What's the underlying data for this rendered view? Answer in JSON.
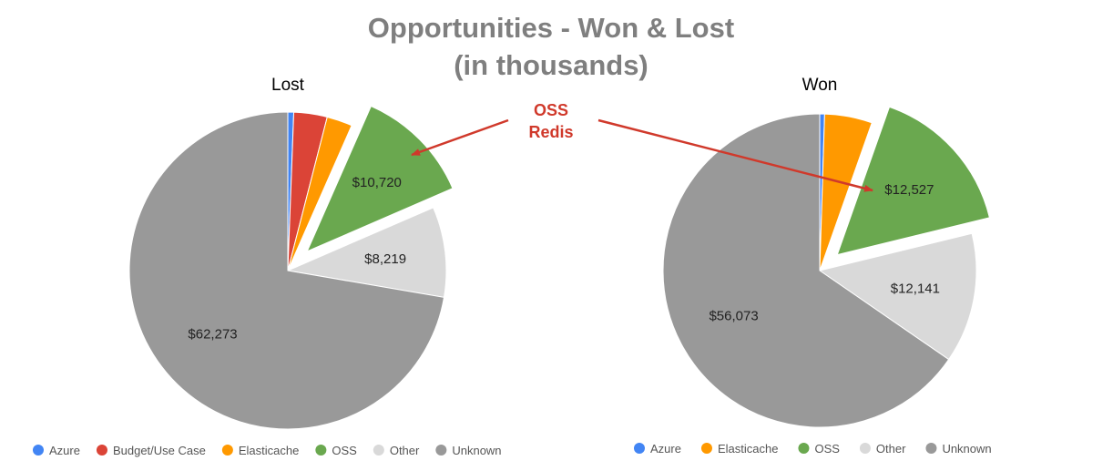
{
  "title_line1": "Opportunities - Won & Lost",
  "title_line2": "(in thousands)",
  "callout": {
    "line1": "OSS",
    "line2": "Redis",
    "color": "#d0392b"
  },
  "chart_data": [
    {
      "type": "pie",
      "title": "Lost",
      "start_angle_deg": 0,
      "slices": [
        {
          "name": "Azure",
          "value": 0.6,
          "color": "#4285f4",
          "label": "",
          "exploded": false
        },
        {
          "name": "Budget/Use Case",
          "value": 3.4,
          "color": "#db4437",
          "label": "",
          "exploded": false
        },
        {
          "name": "Elasticache",
          "value": 2.6,
          "color": "#ff9900",
          "label": "",
          "exploded": false
        },
        {
          "name": "OSS",
          "value": 11.9,
          "color": "#6aa84f",
          "label": "$10,720",
          "exploded": true
        },
        {
          "name": "Other",
          "value": 9.2,
          "color": "#d9d9d9",
          "label": "$8,219",
          "exploded": false
        },
        {
          "name": "Unknown",
          "value": 72.3,
          "color": "#999999",
          "label": "$62,273",
          "exploded": false
        }
      ],
      "legend": [
        "Azure",
        "Budget/Use Case",
        "Elasticache",
        "OSS",
        "Other",
        "Unknown"
      ],
      "legend_position": "bottom"
    },
    {
      "type": "pie",
      "title": "Won",
      "start_angle_deg": 0,
      "slices": [
        {
          "name": "Azure",
          "value": 0.5,
          "color": "#4285f4",
          "label": "",
          "exploded": false
        },
        {
          "name": "Elasticache",
          "value": 4.9,
          "color": "#ff9900",
          "label": "",
          "exploded": false
        },
        {
          "name": "OSS",
          "value": 15.8,
          "color": "#6aa84f",
          "label": "$12,527",
          "exploded": true
        },
        {
          "name": "Other",
          "value": 13.4,
          "color": "#d9d9d9",
          "label": "$12,141",
          "exploded": false
        },
        {
          "name": "Unknown",
          "value": 65.4,
          "color": "#999999",
          "label": "$56,073",
          "exploded": false
        }
      ],
      "legend": [
        "Azure",
        "Elasticache",
        "OSS",
        "Other",
        "Unknown"
      ],
      "legend_position": "bottom"
    }
  ]
}
